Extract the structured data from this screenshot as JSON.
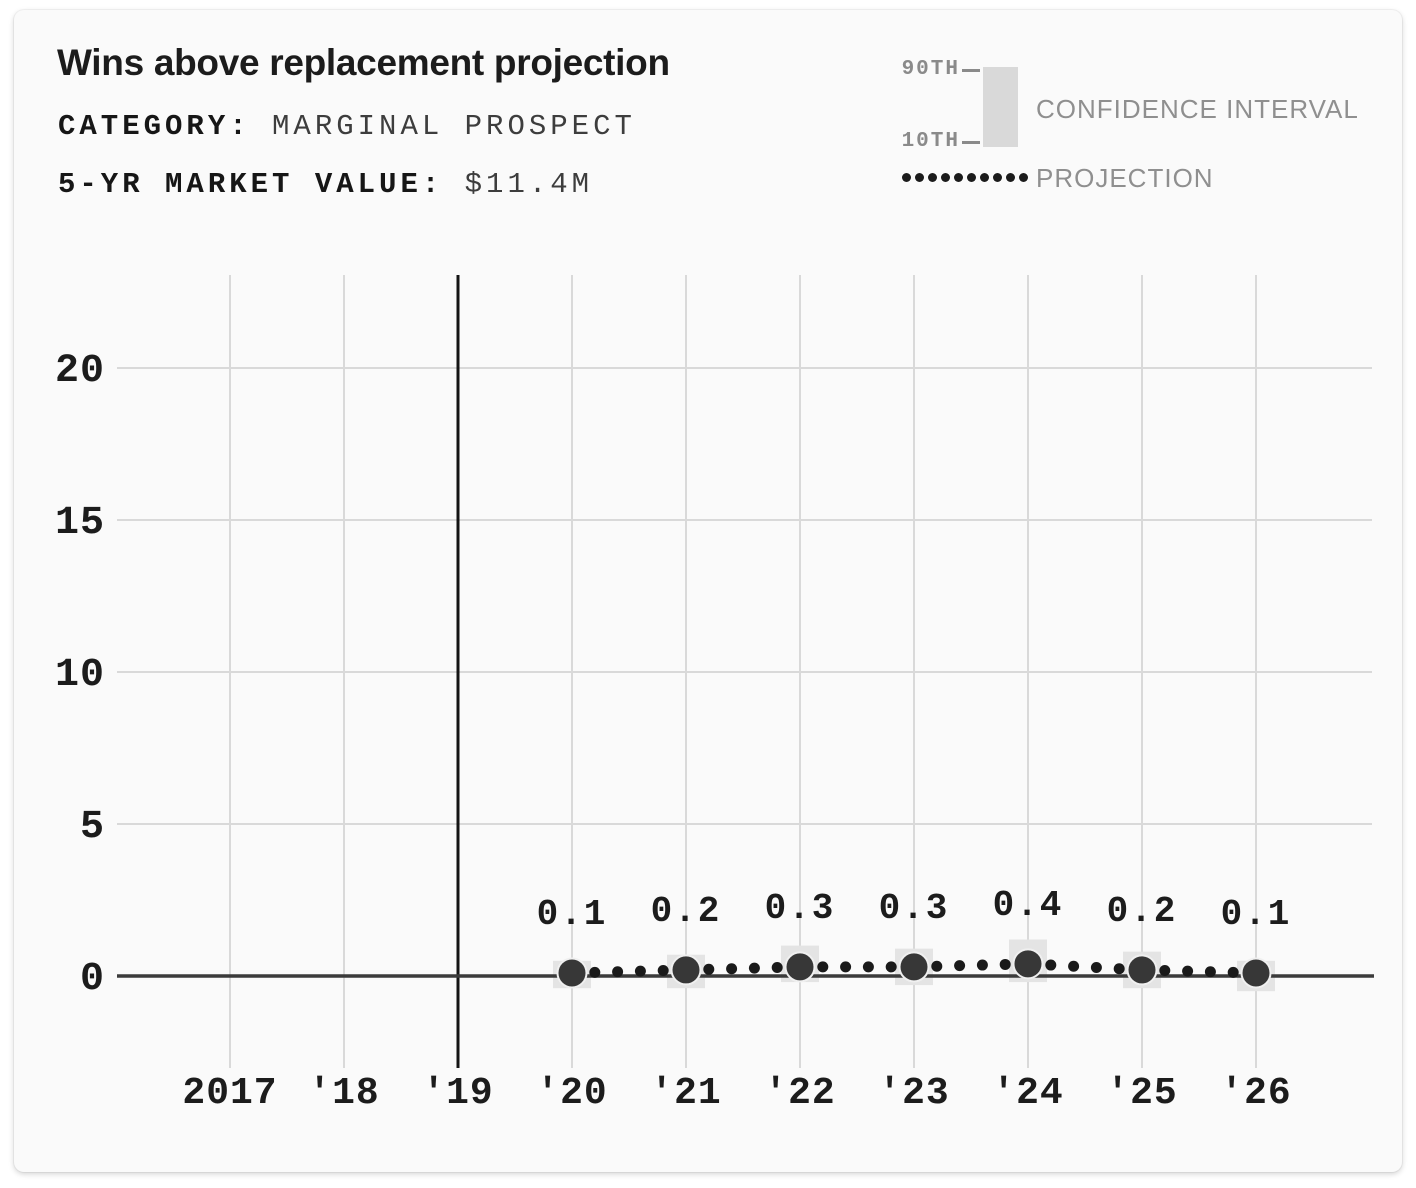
{
  "header": {
    "title": "Wins above replacement projection",
    "meta": [
      {
        "label": "CATEGORY: ",
        "value": "MARGINAL PROSPECT"
      },
      {
        "label": "5-YR MARKET VALUE: ",
        "value": "$11.4M"
      }
    ]
  },
  "legend": {
    "percentile_top": "90TH",
    "percentile_bottom": "10TH",
    "confidence_interval_label": "CONFIDENCE INTERVAL",
    "projection_label": "PROJECTION"
  },
  "colors": {
    "page_background": "#ffffff",
    "card_background": "#fafafa",
    "text_dark": "#1c1c1c",
    "text_gray": "#8f8f8f",
    "gridline": "#d9d9d9",
    "current_year_line": "#141414",
    "zero_axis": "#3b3b3b",
    "point": "#373737",
    "point_halo": "#f0f0f0",
    "projection_dot": "#1a1a1a",
    "ci_box": "#e4e4e4",
    "legend_ci_box": "#d9d9d9"
  },
  "chart_data": {
    "type": "line",
    "title": "Wins above replacement projection",
    "subtitle": "CATEGORY: MARGINAL PROSPECT — 5-YR MARKET VALUE: $11.4M",
    "xlabel": "",
    "ylabel": "",
    "x_years": [
      2017,
      2018,
      2019,
      2020,
      2021,
      2022,
      2023,
      2024,
      2025,
      2026
    ],
    "x_tick_labels": [
      "2017",
      "'18",
      "'19",
      "'20",
      "'21",
      "'22",
      "'23",
      "'24",
      "'25",
      "'26"
    ],
    "y_ticks": [
      0,
      5,
      10,
      15,
      20
    ],
    "ylim": [
      -3,
      23
    ],
    "grid": true,
    "current_season_marker_year": 2019,
    "legend_position": "top-right",
    "series": [
      {
        "name": "PROJECTION",
        "style": "dotted-line-with-points",
        "x": [
          2020,
          2021,
          2022,
          2023,
          2024,
          2025,
          2026
        ],
        "values": [
          0.1,
          0.2,
          0.3,
          0.3,
          0.4,
          0.2,
          0.1
        ],
        "point_labels": [
          "0.1",
          "0.2",
          "0.3",
          "0.3",
          "0.4",
          "0.2",
          "0.1"
        ],
        "ci_low": [
          -0.4,
          -0.4,
          -0.2,
          -0.3,
          -0.2,
          -0.4,
          -0.5
        ],
        "ci_high": [
          0.5,
          0.7,
          1.0,
          0.9,
          1.2,
          0.8,
          0.5
        ]
      }
    ]
  }
}
